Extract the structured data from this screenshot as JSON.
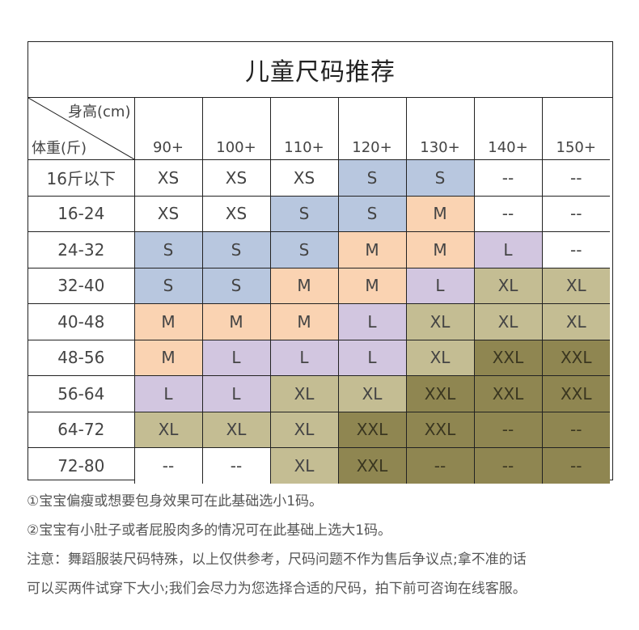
{
  "title": "儿童尺码推荐",
  "corner": {
    "height_label": "身高(cm)",
    "weight_label": "体重(斤)"
  },
  "heights": [
    "90+",
    "100+",
    "110+",
    "120+",
    "130+",
    "140+",
    "150+"
  ],
  "rows": [
    {
      "weight": "16斤以下",
      "sizes": [
        "XS",
        "XS",
        "XS",
        "S",
        "S",
        "--",
        "--"
      ]
    },
    {
      "weight": "16-24",
      "sizes": [
        "XS",
        "XS",
        "S",
        "S",
        "M",
        "--",
        "--"
      ]
    },
    {
      "weight": "24-32",
      "sizes": [
        "S",
        "S",
        "S",
        "M",
        "M",
        "L",
        "--"
      ]
    },
    {
      "weight": "32-40",
      "sizes": [
        "S",
        "S",
        "M",
        "M",
        "L",
        "XL",
        "XL"
      ]
    },
    {
      "weight": "40-48",
      "sizes": [
        "M",
        "M",
        "M",
        "L",
        "XL",
        "XL",
        "XL"
      ]
    },
    {
      "weight": "48-56",
      "sizes": [
        "M",
        "L",
        "L",
        "L",
        "XL",
        "XXL",
        "XXL"
      ]
    },
    {
      "weight": "56-64",
      "sizes": [
        "L",
        "L",
        "XL",
        "XL",
        "XXL",
        "XXL",
        "XXL"
      ]
    },
    {
      "weight": "64-72",
      "sizes": [
        "XL",
        "XL",
        "XL",
        "XXL",
        "XXL",
        "--",
        "--"
      ]
    },
    {
      "weight": "72-80",
      "sizes": [
        "--",
        "--",
        "XL",
        "XXL",
        "--",
        "--",
        "--"
      ]
    }
  ],
  "cell_colors": [
    [
      "#ffffff",
      "#ffffff",
      "#ffffff",
      "#b8c7df",
      "#b8c7df",
      "#ffffff",
      "#ffffff"
    ],
    [
      "#ffffff",
      "#ffffff",
      "#b8c7df",
      "#b8c7df",
      "#fad3b2",
      "#ffffff",
      "#ffffff"
    ],
    [
      "#b8c7df",
      "#b8c7df",
      "#b8c7df",
      "#fad3b2",
      "#fad3b2",
      "#d2c6e0",
      "#ffffff"
    ],
    [
      "#b8c7df",
      "#b8c7df",
      "#fad3b2",
      "#fad3b2",
      "#d2c6e0",
      "#c4bd93",
      "#c4bd93"
    ],
    [
      "#fad3b2",
      "#fad3b2",
      "#fad3b2",
      "#d2c6e0",
      "#c4bd93",
      "#c4bd93",
      "#c4bd93"
    ],
    [
      "#fad3b2",
      "#d2c6e0",
      "#d2c6e0",
      "#d2c6e0",
      "#c4bd93",
      "#8f8651",
      "#8f8651"
    ],
    [
      "#d2c6e0",
      "#d2c6e0",
      "#c4bd93",
      "#c4bd93",
      "#8f8651",
      "#8f8651",
      "#8f8651"
    ],
    [
      "#c4bd93",
      "#c4bd93",
      "#c4bd93",
      "#8f8651",
      "#8f8651",
      "#8f8651",
      "#8f8651"
    ],
    [
      "#ffffff",
      "#ffffff",
      "#c4bd93",
      "#8f8651",
      "#8f8651",
      "#8f8651",
      "#8f8651"
    ]
  ],
  "notes": [
    "①宝宝偏瘦或想要包身效果可在此基础选小1码。",
    "②宝宝有小肚子或者屁股肉多的情况可在此基础上选大1码。",
    "注意：舞蹈服装尺码特殊，以上仅供参考，尺码问题不作为售后争议点;拿不准的话",
    "可以买两件试穿下大小;我们会尽力为您选择合适的尺码，拍下前可咨询在线客服。"
  ]
}
